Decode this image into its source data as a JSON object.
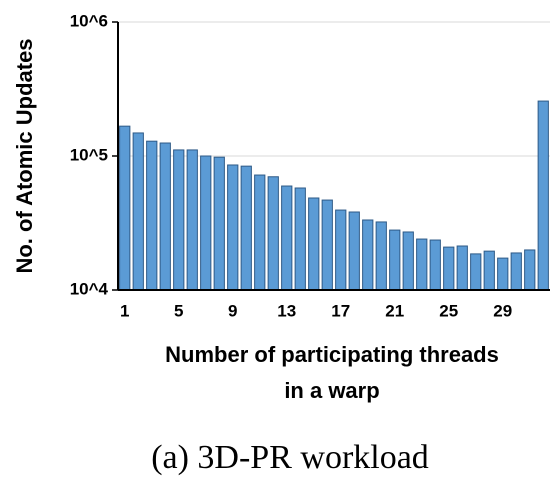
{
  "chart_data": {
    "type": "bar",
    "caption": "(a) 3D-PR workload",
    "x_label": [
      "Number of participating threads",
      "in a warp"
    ],
    "y_label": "No. of Atomic Updates",
    "categories": [
      "1",
      null,
      null,
      null,
      "5",
      null,
      null,
      null,
      "9",
      null,
      null,
      null,
      "13",
      null,
      null,
      null,
      "17",
      null,
      null,
      null,
      "21",
      null,
      null,
      null,
      "25",
      null,
      null,
      null,
      "29",
      null,
      null,
      null
    ],
    "values": [
      167000,
      148600,
      129000,
      125000,
      111000,
      111000,
      100000,
      98000,
      85700,
      84000,
      72100,
      70000,
      59700,
      57700,
      48600,
      46900,
      39500,
      38200,
      33300,
      32200,
      28000,
      27100,
      24000,
      23600,
      20900,
      21300,
      18600,
      19500,
      17300,
      18900,
      19900,
      257000
    ],
    "color": "#5b9bd5",
    "edge_color": "#2e5a87",
    "log_scale": true,
    "ylim": [
      10000,
      1000000
    ],
    "yticks": [
      {
        "value": 10000,
        "label": "10^4"
      },
      {
        "value": 100000,
        "label": "10^5"
      },
      {
        "value": 1000000,
        "label": "10^6"
      }
    ],
    "grid": true
  }
}
